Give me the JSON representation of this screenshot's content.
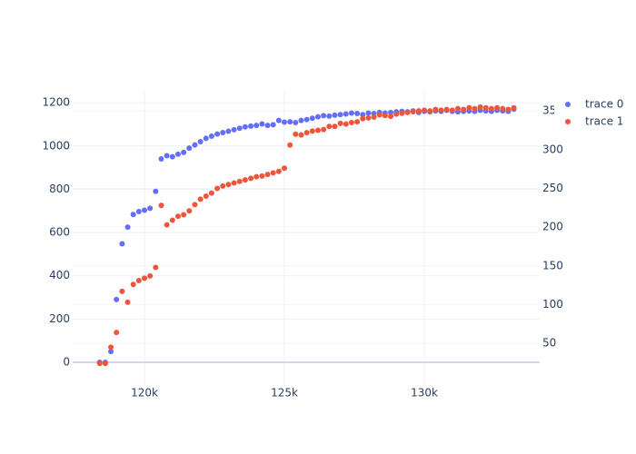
{
  "chart_data": {
    "type": "scatter",
    "x": [
      118400,
      118600,
      118800,
      119000,
      119200,
      119400,
      119600,
      119800,
      120000,
      120200,
      120400,
      120600,
      120800,
      121000,
      121200,
      121400,
      121600,
      121800,
      122000,
      122200,
      122400,
      122600,
      122800,
      123000,
      123200,
      123400,
      123600,
      123800,
      124000,
      124200,
      124400,
      124600,
      124800,
      125000,
      125200,
      125400,
      125600,
      125800,
      126000,
      126200,
      126400,
      126600,
      126800,
      127000,
      127200,
      127400,
      127600,
      127800,
      128000,
      128200,
      128400,
      128600,
      128800,
      129000,
      129200,
      129400,
      129600,
      129800,
      130000,
      130200,
      130400,
      130600,
      130800,
      131000,
      131200,
      131400,
      131600,
      131800,
      132000,
      132200,
      132400,
      132600,
      132800,
      133000,
      133200
    ],
    "series": [
      {
        "name": "trace 0",
        "color": "#636efa",
        "values": [
          0,
          0,
          50,
          290,
          548,
          625,
          683,
          697,
          703,
          712,
          790,
          940,
          955,
          950,
          962,
          970,
          990,
          1005,
          1020,
          1035,
          1045,
          1055,
          1062,
          1068,
          1075,
          1082,
          1088,
          1092,
          1095,
          1102,
          1095,
          1098,
          1118,
          1110,
          1112,
          1108,
          1118,
          1122,
          1128,
          1135,
          1140,
          1138,
          1142,
          1145,
          1148,
          1152,
          1150,
          1145,
          1152,
          1150,
          1155,
          1152,
          1155,
          1158,
          1160,
          1158,
          1162,
          1155,
          1160,
          1158,
          1162,
          1160,
          1165,
          1160,
          1158,
          1160,
          1162,
          1160,
          1165,
          1162,
          1160,
          1165,
          1162,
          1160,
          1170
        ]
      },
      {
        "name": "trace 1",
        "color": "#EF553B",
        "axis": "y2",
        "values": [
          24,
          24,
          45,
          64,
          117,
          103,
          126,
          131,
          134,
          137,
          148,
          228,
          203,
          209,
          214,
          216,
          221,
          229,
          236,
          240,
          244,
          250,
          253,
          255,
          257,
          259,
          261,
          263,
          265,
          266,
          268,
          270,
          272,
          276,
          306,
          320,
          319,
          322,
          324,
          325,
          326,
          330,
          330,
          334,
          333,
          335,
          336,
          340,
          341,
          342,
          345,
          344,
          343,
          346,
          347,
          348,
          349,
          350,
          351,
          350,
          352,
          351,
          352,
          351,
          353,
          352,
          354,
          353,
          355,
          354,
          353,
          354,
          353,
          352,
          354
        ]
      }
    ],
    "xlim": [
      117435,
      134123
    ],
    "xticks": [
      {
        "value": 120000,
        "label": "120k"
      },
      {
        "value": 125000,
        "label": "125k"
      },
      {
        "value": 130000,
        "label": "130k"
      }
    ],
    "ylim": [
      -109,
      1255
    ],
    "yticks": [
      0,
      200,
      400,
      600,
      800,
      1000,
      1200
    ],
    "y2lim": [
      -5,
      376
    ],
    "y2ticks": [
      50,
      100,
      150,
      200,
      250,
      300,
      350
    ],
    "grid": true
  }
}
